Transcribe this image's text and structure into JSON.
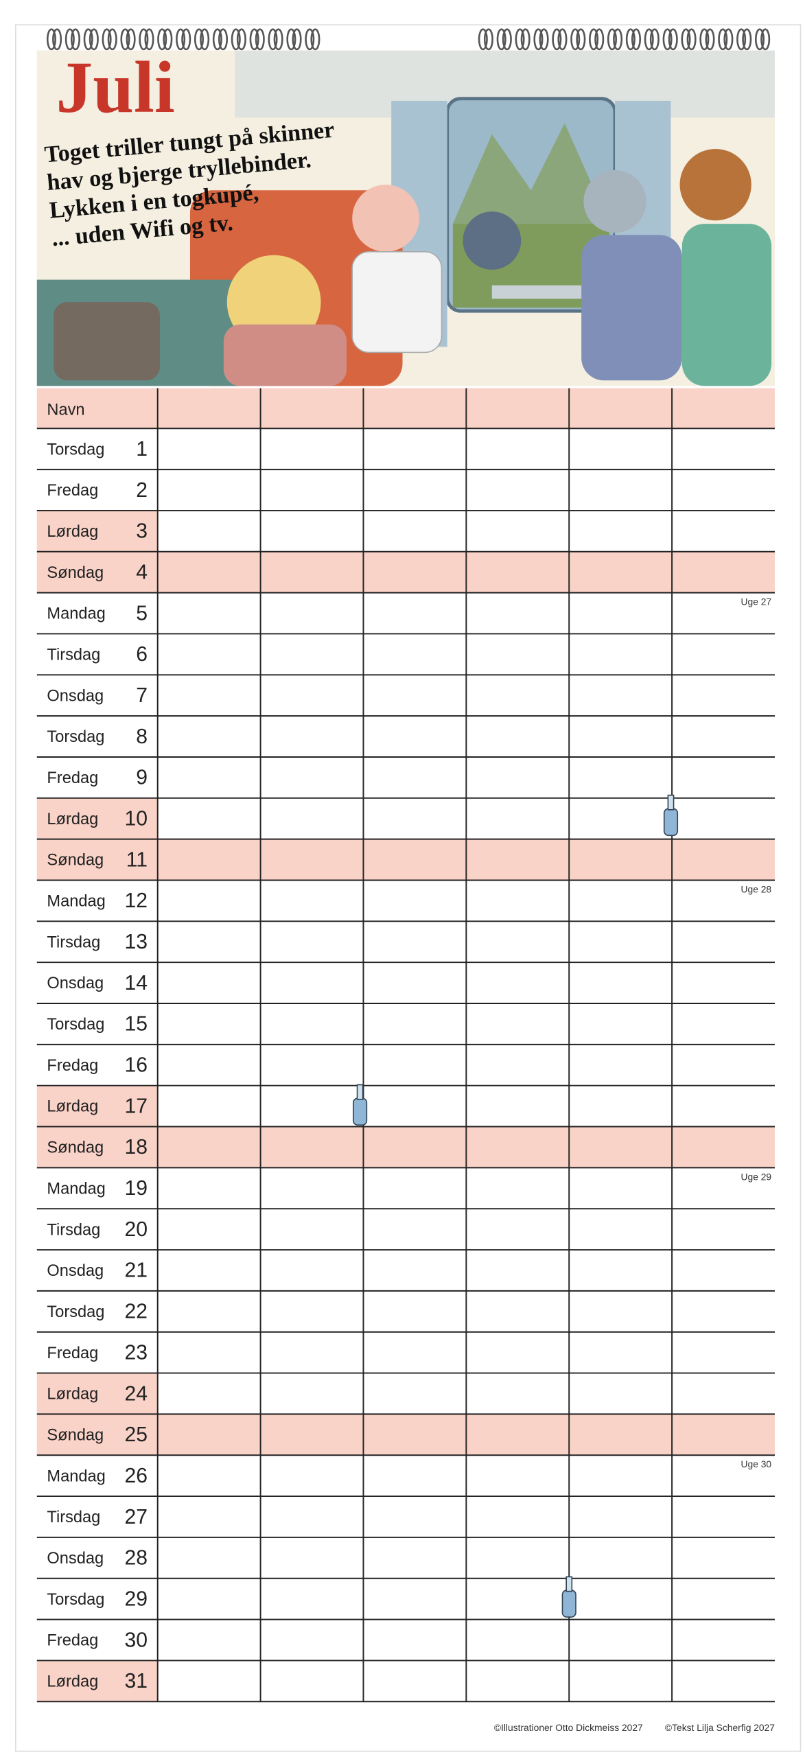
{
  "header": {
    "month": "Juli",
    "poem": [
      "Toget triller tungt på skinner",
      "hav og bjerge tryllebinder.",
      "Lykken i en togkupé,",
      "... uden Wifi og tv."
    ]
  },
  "table": {
    "name_label": "Navn",
    "rows": [
      {
        "day": "Torsdag",
        "date": 1
      },
      {
        "day": "Fredag",
        "date": 2
      },
      {
        "day": "Lørdag",
        "date": 3,
        "shade": "name"
      },
      {
        "day": "Søndag",
        "date": 4,
        "shade": "row"
      },
      {
        "day": "Mandag",
        "date": 5,
        "week": "Uge 27"
      },
      {
        "day": "Tirsdag",
        "date": 6
      },
      {
        "day": "Onsdag",
        "date": 7
      },
      {
        "day": "Torsdag",
        "date": 8
      },
      {
        "day": "Fredag",
        "date": 9
      },
      {
        "day": "Lørdag",
        "date": 10,
        "shade": "name"
      },
      {
        "day": "Søndag",
        "date": 11,
        "shade": "row"
      },
      {
        "day": "Mandag",
        "date": 12,
        "week": "Uge 28"
      },
      {
        "day": "Tirsdag",
        "date": 13
      },
      {
        "day": "Onsdag",
        "date": 14
      },
      {
        "day": "Torsdag",
        "date": 15
      },
      {
        "day": "Fredag",
        "date": 16
      },
      {
        "day": "Lørdag",
        "date": 17,
        "shade": "name"
      },
      {
        "day": "Søndag",
        "date": 18,
        "shade": "row"
      },
      {
        "day": "Mandag",
        "date": 19,
        "week": "Uge 29"
      },
      {
        "day": "Tirsdag",
        "date": 20
      },
      {
        "day": "Onsdag",
        "date": 21
      },
      {
        "day": "Torsdag",
        "date": 22
      },
      {
        "day": "Fredag",
        "date": 23
      },
      {
        "day": "Lørdag",
        "date": 24,
        "shade": "name"
      },
      {
        "day": "Søndag",
        "date": 25,
        "shade": "row"
      },
      {
        "day": "Mandag",
        "date": 26,
        "week": "Uge 30"
      },
      {
        "day": "Tirsdag",
        "date": 27
      },
      {
        "day": "Onsdag",
        "date": 28
      },
      {
        "day": "Torsdag",
        "date": 29
      },
      {
        "day": "Fredag",
        "date": 30
      },
      {
        "day": "Lørdag",
        "date": 31,
        "shade": "name"
      }
    ]
  },
  "footer": {
    "illustrations": "©Illustrationer Otto Dickmeiss 2027",
    "text": "©Tekst Lilja Scherfig 2027"
  }
}
